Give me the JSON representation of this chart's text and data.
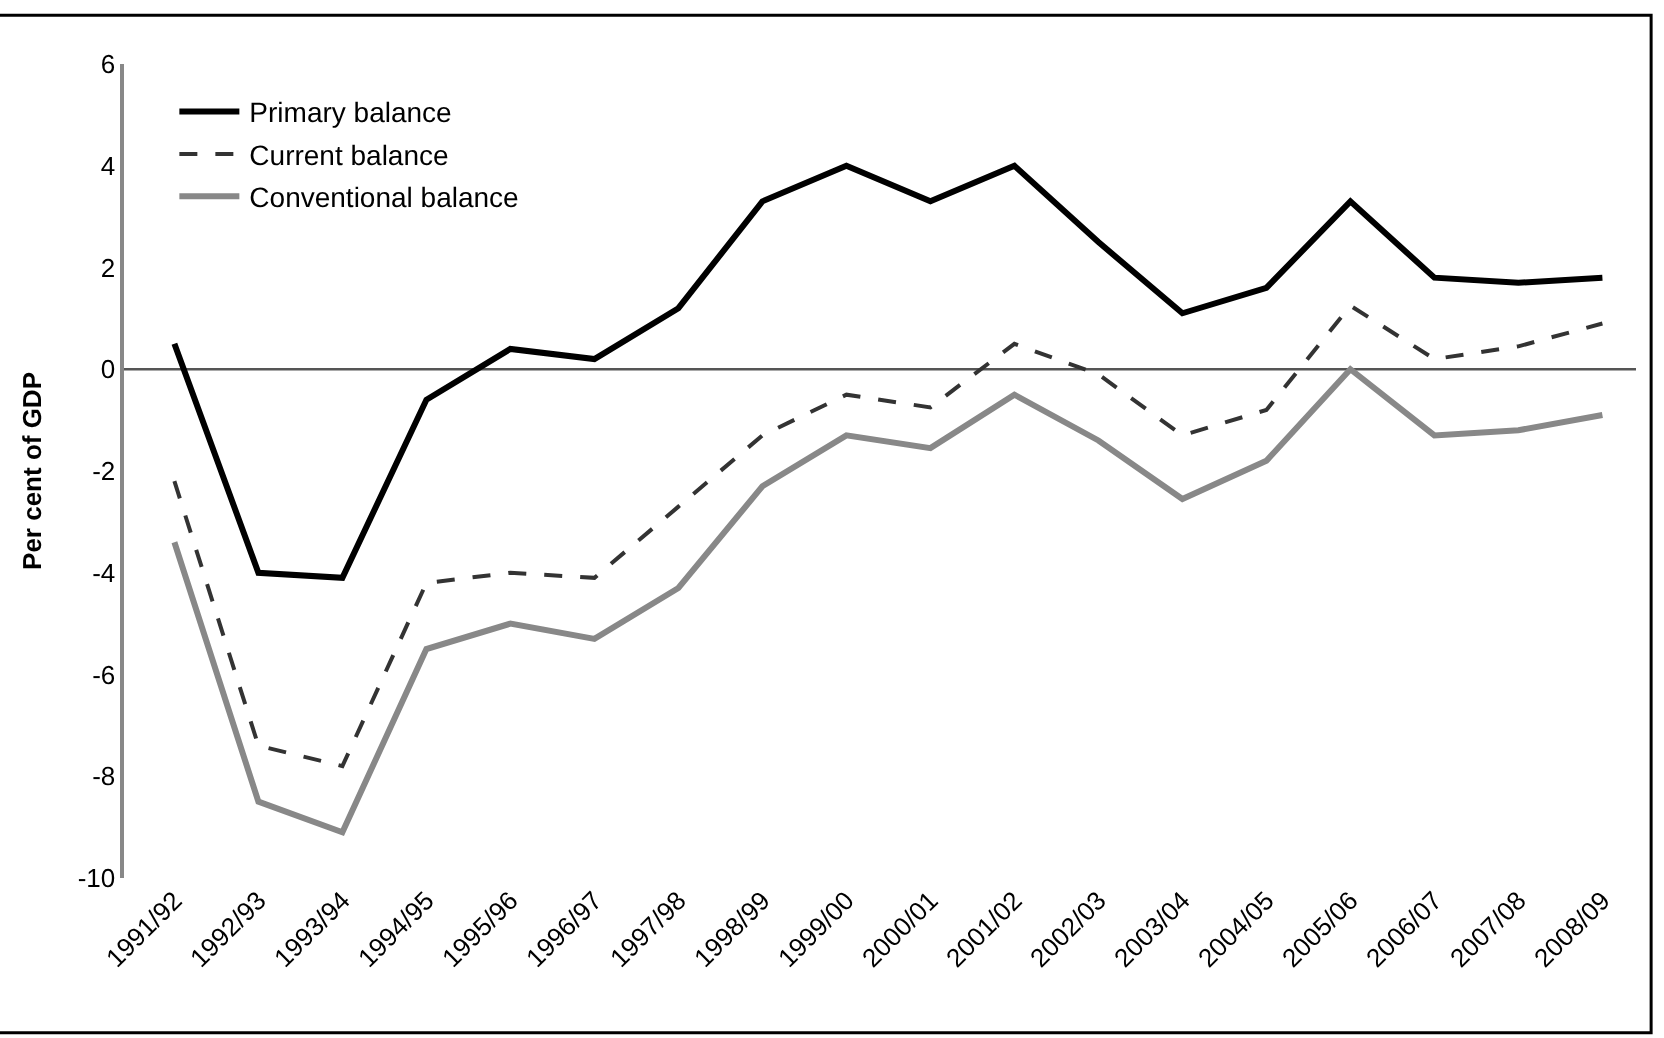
{
  "chart_data": {
    "type": "line",
    "ylabel": "Per cent of GDP",
    "categories": [
      "1991/92",
      "1992/93",
      "1993/94",
      "1994/95",
      "1995/96",
      "1996/97",
      "1997/98",
      "1998/99",
      "1999/00",
      "2000/01",
      "2001/02",
      "2002/03",
      "2003/04",
      "2004/05",
      "2005/06",
      "2006/07",
      "2007/08",
      "2008/09"
    ],
    "series": [
      {
        "name": "Primary balance",
        "color": "#000000",
        "line_style": "solid",
        "values": [
          0.5,
          -4.0,
          -4.1,
          -0.6,
          0.4,
          0.2,
          1.2,
          3.3,
          4.0,
          3.3,
          4.0,
          2.5,
          1.1,
          1.6,
          3.3,
          1.8,
          1.7,
          1.8
        ]
      },
      {
        "name": "Current balance",
        "color": "#333333",
        "line_style": "dashed",
        "values": [
          -2.2,
          -7.4,
          -7.8,
          -4.2,
          -4.0,
          -4.1,
          -2.7,
          -1.3,
          -0.5,
          -0.75,
          0.5,
          -0.1,
          -1.3,
          -0.8,
          1.25,
          0.2,
          0.45,
          0.9
        ]
      },
      {
        "name": "Conventional balance",
        "color": "#888888",
        "line_style": "solid",
        "values": [
          -3.4,
          -8.5,
          -9.1,
          -5.5,
          -5.0,
          -5.3,
          -4.3,
          -2.3,
          -1.3,
          -1.55,
          -0.5,
          -1.4,
          -2.55,
          -1.8,
          0.0,
          -1.3,
          -1.2,
          -0.9
        ]
      }
    ],
    "ylim": [
      -10,
      6
    ],
    "yticks": [
      -10,
      -8,
      -6,
      -4,
      -2,
      0,
      2,
      4,
      6
    ],
    "ref_lines": [
      {
        "axis": "y",
        "value": 0,
        "color": "#555555"
      }
    ],
    "grid": false,
    "legend": "top left",
    "marker": "none"
  }
}
